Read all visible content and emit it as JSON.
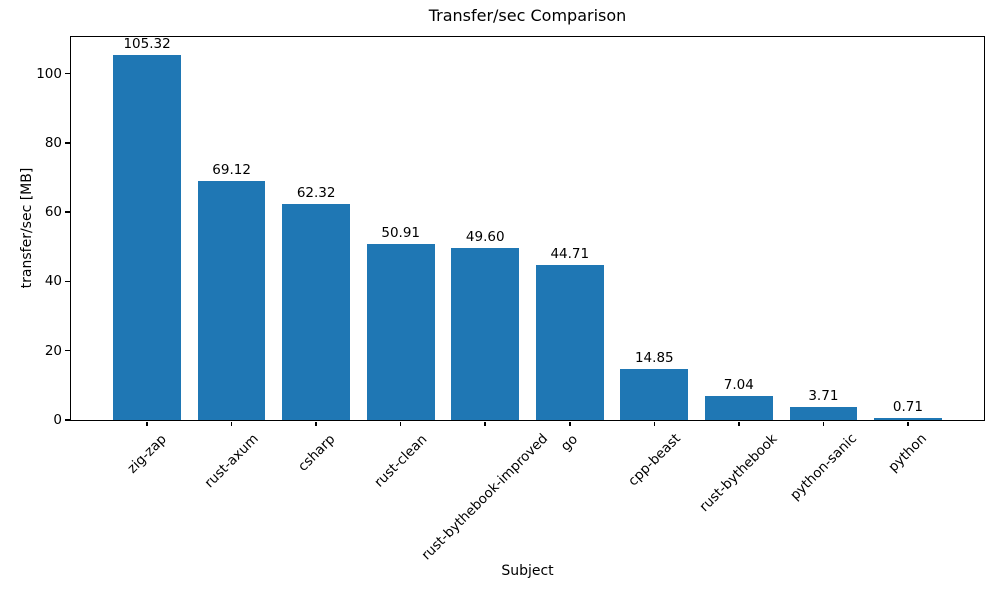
{
  "chart_data": {
    "type": "bar",
    "title": "Transfer/sec Comparison",
    "xlabel": "Subject",
    "ylabel": "transfer/sec [MB]",
    "categories": [
      "zig-zap",
      "rust-axum",
      "csharp",
      "rust-clean",
      "rust-bythebook-improved",
      "go",
      "cpp-beast",
      "rust-bythebook",
      "python-sanic",
      "python"
    ],
    "values": [
      105.32,
      69.12,
      62.32,
      50.91,
      49.6,
      44.71,
      14.85,
      7.04,
      3.71,
      0.71
    ],
    "value_labels": [
      "105.32",
      "69.12",
      "62.32",
      "50.91",
      "49.60",
      "44.71",
      "14.85",
      "7.04",
      "3.71",
      "0.71"
    ],
    "yticks": [
      0,
      20,
      40,
      60,
      80,
      100
    ],
    "ytick_labels": [
      "0",
      "20",
      "40",
      "60",
      "80",
      "100"
    ],
    "ylim": [
      0,
      110.6
    ],
    "xlim": [
      -0.9,
      9.9
    ],
    "bar_rel_width": 0.8,
    "bar_color": "#1f77b4",
    "axis_color": "#000000",
    "background_color": "#ffffff",
    "grid": false,
    "legend_position": "none",
    "xtick_rotation_deg": 45
  }
}
